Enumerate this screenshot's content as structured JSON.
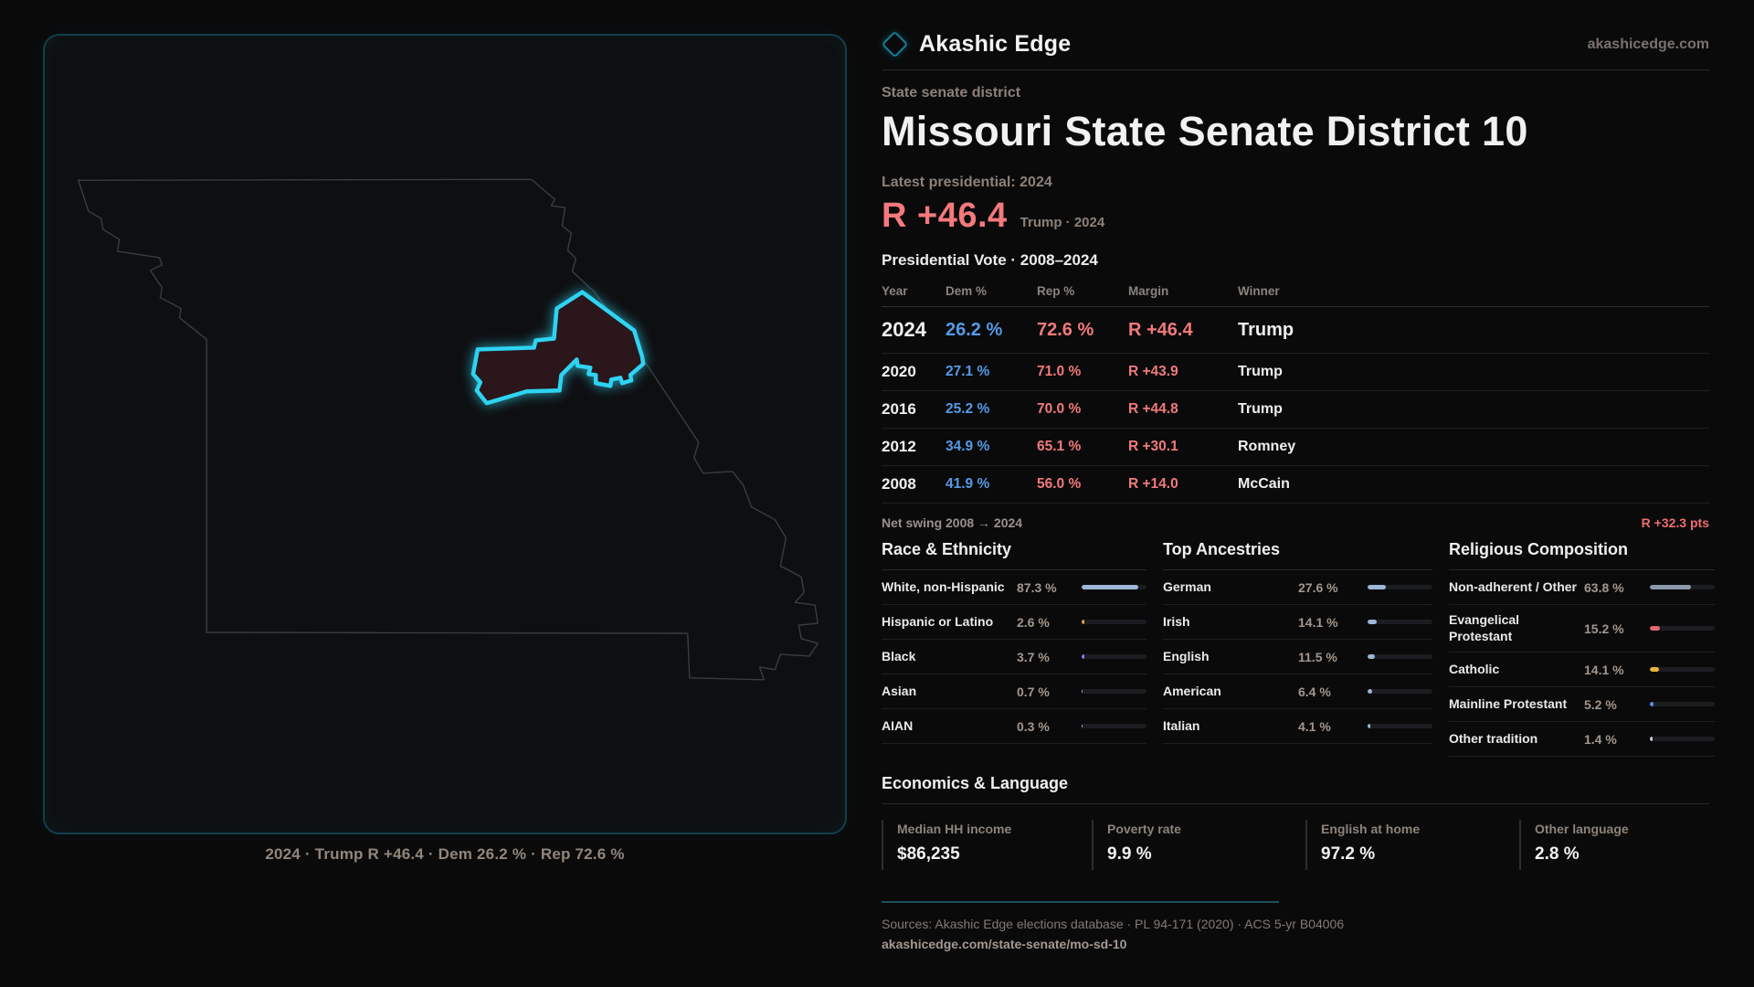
{
  "header": {
    "brand": "Akashic Edge",
    "site": "akashicedge.com"
  },
  "map": {
    "caption": "2024 · Trump R +46.4 · Dem 26.2 % · Rep 72.6 %"
  },
  "title_block": {
    "eyebrow": "State senate district",
    "title": "Missouri State Senate District 10",
    "latest_label": "Latest presidential: 2024",
    "margin_value": "R +46.4",
    "margin_context": "Trump · 2024"
  },
  "table": {
    "title": "Presidential Vote · 2008–2024",
    "columns": [
      "Year",
      "Dem %",
      "Rep %",
      "Margin",
      "Winner"
    ],
    "rows": [
      {
        "year": "2024",
        "dem": "26.2 %",
        "rep": "72.6 %",
        "margin": "R +46.4",
        "winner": "Trump"
      },
      {
        "year": "2020",
        "dem": "27.1 %",
        "rep": "71.0 %",
        "margin": "R +43.9",
        "winner": "Trump"
      },
      {
        "year": "2016",
        "dem": "25.2 %",
        "rep": "70.0 %",
        "margin": "R +44.8",
        "winner": "Trump"
      },
      {
        "year": "2012",
        "dem": "34.9 %",
        "rep": "65.1 %",
        "margin": "R +30.1",
        "winner": "Romney"
      },
      {
        "year": "2008",
        "dem": "41.9 %",
        "rep": "56.0 %",
        "margin": "R +14.0",
        "winner": "McCain"
      }
    ]
  },
  "net_swing": {
    "label": "Net swing 2008 → 2024",
    "value": "R +32.3 pts"
  },
  "demographics": {
    "race": {
      "title": "Race & Ethnicity",
      "rows": [
        {
          "label": "White, non-Hispanic",
          "value": "87.3 %",
          "pct": 87.3,
          "color": "#9db7d6"
        },
        {
          "label": "Hispanic or Latino",
          "value": "2.6 %",
          "pct": 2.6,
          "color": "#e5a33c"
        },
        {
          "label": "Black",
          "value": "3.7 %",
          "pct": 3.7,
          "color": "#8f7cee"
        },
        {
          "label": "Asian",
          "value": "0.7 %",
          "pct": 0.7,
          "color": "#9db7d6"
        },
        {
          "label": "AIAN",
          "value": "0.3 %",
          "pct": 0.3,
          "color": "#9db7d6"
        }
      ]
    },
    "ancestries": {
      "title": "Top Ancestries",
      "rows": [
        {
          "label": "German",
          "value": "27.6 %",
          "pct": 27.6,
          "color": "#9db7d6"
        },
        {
          "label": "Irish",
          "value": "14.1 %",
          "pct": 14.1,
          "color": "#9db7d6"
        },
        {
          "label": "English",
          "value": "11.5 %",
          "pct": 11.5,
          "color": "#9db7d6"
        },
        {
          "label": "American",
          "value": "6.4 %",
          "pct": 6.4,
          "color": "#9db7d6"
        },
        {
          "label": "Italian",
          "value": "4.1 %",
          "pct": 4.1,
          "color": "#9db7d6"
        }
      ]
    },
    "religion": {
      "title": "Religious Composition",
      "rows": [
        {
          "label": "Non-adherent / Other",
          "value": "63.8 %",
          "pct": 63.8,
          "color": "#8c98ab"
        },
        {
          "label": "Evangelical Protestant",
          "value": "15.2 %",
          "pct": 15.2,
          "color": "#e2696f"
        },
        {
          "label": "Catholic",
          "value": "14.1 %",
          "pct": 14.1,
          "color": "#e6b23a"
        },
        {
          "label": "Mainline Protestant",
          "value": "5.2 %",
          "pct": 5.2,
          "color": "#4e94ea"
        },
        {
          "label": "Other tradition",
          "value": "1.4 %",
          "pct": 1.4,
          "color": "#cfcfcf"
        }
      ]
    }
  },
  "economics": {
    "title": "Economics & Language",
    "stats": [
      {
        "label": "Median HH income",
        "value": "$86,235"
      },
      {
        "label": "Poverty rate",
        "value": "9.9 %"
      },
      {
        "label": "English at home",
        "value": "97.2 %"
      },
      {
        "label": "Other language",
        "value": "2.8 %"
      }
    ]
  },
  "footer": {
    "sources": "Sources: Akashic Edge elections database · PL 94-171 (2020) · ACS 5-yr B04006",
    "url": "akashicedge.com/state-senate/mo-sd-10"
  }
}
